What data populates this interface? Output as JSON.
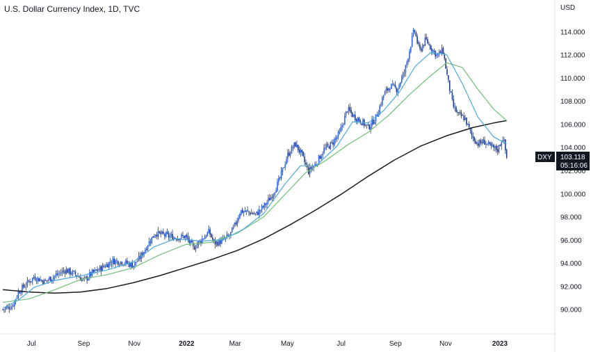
{
  "chart_data": {
    "type": "candlestick",
    "title": "U.S. Dollar Currency Index, 1D, TVC",
    "currency": "USD",
    "symbol_tag": "DXY",
    "last_price": "103.118",
    "countdown": "05:16:06",
    "ylim": [
      88.6,
      115.4
    ],
    "yticks": [
      "90.000",
      "92.000",
      "94.000",
      "96.000",
      "98.000",
      "100.000",
      "102.000",
      "104.000",
      "106.000",
      "108.000",
      "110.000",
      "112.000",
      "114.000"
    ],
    "xticks": [
      {
        "label": "Jul",
        "bold": false,
        "t": 0.055
      },
      {
        "label": "Sep",
        "bold": false,
        "t": 0.155
      },
      {
        "label": "Nov",
        "bold": false,
        "t": 0.252
      },
      {
        "label": "2022",
        "bold": true,
        "t": 0.352
      },
      {
        "label": "Mar",
        "bold": false,
        "t": 0.445
      },
      {
        "label": "May",
        "bold": false,
        "t": 0.545
      },
      {
        "label": "Jul",
        "bold": false,
        "t": 0.648
      },
      {
        "label": "Sep",
        "bold": false,
        "t": 0.752
      },
      {
        "label": "Nov",
        "bold": false,
        "t": 0.848
      },
      {
        "label": "2023",
        "bold": true,
        "t": 0.952
      }
    ],
    "price_path": [
      [
        0.0,
        90.0
      ],
      [
        0.018,
        90.3
      ],
      [
        0.03,
        91.5
      ],
      [
        0.045,
        92.2
      ],
      [
        0.06,
        92.8
      ],
      [
        0.08,
        92.4
      ],
      [
        0.1,
        92.9
      ],
      [
        0.12,
        93.4
      ],
      [
        0.14,
        93.0
      ],
      [
        0.155,
        92.5
      ],
      [
        0.17,
        93.1
      ],
      [
        0.19,
        93.6
      ],
      [
        0.21,
        94.2
      ],
      [
        0.23,
        94.1
      ],
      [
        0.25,
        93.8
      ],
      [
        0.265,
        94.6
      ],
      [
        0.28,
        95.8
      ],
      [
        0.292,
        96.6
      ],
      [
        0.31,
        96.4
      ],
      [
        0.33,
        96.2
      ],
      [
        0.35,
        96.3
      ],
      [
        0.365,
        95.3
      ],
      [
        0.38,
        96.0
      ],
      [
        0.395,
        96.7
      ],
      [
        0.405,
        95.7
      ],
      [
        0.42,
        95.9
      ],
      [
        0.435,
        96.4
      ],
      [
        0.445,
        97.3
      ],
      [
        0.455,
        98.5
      ],
      [
        0.47,
        98.4
      ],
      [
        0.485,
        98.2
      ],
      [
        0.5,
        98.9
      ],
      [
        0.515,
        99.8
      ],
      [
        0.53,
        101.2
      ],
      [
        0.545,
        103.3
      ],
      [
        0.56,
        104.3
      ],
      [
        0.572,
        103.4
      ],
      [
        0.585,
        101.9
      ],
      [
        0.6,
        102.6
      ],
      [
        0.615,
        103.8
      ],
      [
        0.63,
        104.3
      ],
      [
        0.645,
        105.2
      ],
      [
        0.66,
        107.3
      ],
      [
        0.672,
        106.7
      ],
      [
        0.685,
        106.3
      ],
      [
        0.7,
        105.7
      ],
      [
        0.715,
        106.6
      ],
      [
        0.73,
        108.6
      ],
      [
        0.742,
        109.3
      ],
      [
        0.755,
        109.0
      ],
      [
        0.77,
        110.6
      ],
      [
        0.78,
        112.6
      ],
      [
        0.788,
        114.2
      ],
      [
        0.798,
        112.3
      ],
      [
        0.81,
        113.3
      ],
      [
        0.82,
        112.6
      ],
      [
        0.832,
        111.9
      ],
      [
        0.843,
        112.4
      ],
      [
        0.852,
        109.9
      ],
      [
        0.862,
        107.6
      ],
      [
        0.872,
        106.8
      ],
      [
        0.885,
        106.5
      ],
      [
        0.898,
        105.0
      ],
      [
        0.91,
        104.3
      ],
      [
        0.922,
        104.5
      ],
      [
        0.935,
        104.0
      ],
      [
        0.948,
        103.8
      ],
      [
        0.958,
        104.9
      ],
      [
        0.965,
        103.1
      ]
    ],
    "ma_blue": [
      [
        0.0,
        90.1
      ],
      [
        0.03,
        90.8
      ],
      [
        0.06,
        91.9
      ],
      [
        0.1,
        92.5
      ],
      [
        0.15,
        92.9
      ],
      [
        0.2,
        93.4
      ],
      [
        0.25,
        94.1
      ],
      [
        0.29,
        95.4
      ],
      [
        0.33,
        96.1
      ],
      [
        0.38,
        95.9
      ],
      [
        0.42,
        96.0
      ],
      [
        0.46,
        96.9
      ],
      [
        0.5,
        98.3
      ],
      [
        0.54,
        100.8
      ],
      [
        0.57,
        102.4
      ],
      [
        0.6,
        102.4
      ],
      [
        0.64,
        104.1
      ],
      [
        0.67,
        106.2
      ],
      [
        0.7,
        106.1
      ],
      [
        0.73,
        107.2
      ],
      [
        0.76,
        108.8
      ],
      [
        0.79,
        111.0
      ],
      [
        0.82,
        112.2
      ],
      [
        0.85,
        112.0
      ],
      [
        0.88,
        109.5
      ],
      [
        0.91,
        106.6
      ],
      [
        0.94,
        104.9
      ],
      [
        0.965,
        104.3
      ]
    ],
    "ma_green": [
      [
        0.0,
        90.6
      ],
      [
        0.05,
        90.9
      ],
      [
        0.1,
        91.7
      ],
      [
        0.15,
        92.6
      ],
      [
        0.2,
        93.0
      ],
      [
        0.25,
        93.6
      ],
      [
        0.3,
        94.7
      ],
      [
        0.35,
        95.6
      ],
      [
        0.4,
        95.8
      ],
      [
        0.45,
        96.6
      ],
      [
        0.5,
        98.0
      ],
      [
        0.54,
        99.9
      ],
      [
        0.58,
        101.8
      ],
      [
        0.62,
        102.9
      ],
      [
        0.66,
        104.2
      ],
      [
        0.7,
        105.3
      ],
      [
        0.74,
        106.8
      ],
      [
        0.78,
        108.6
      ],
      [
        0.82,
        110.2
      ],
      [
        0.85,
        111.3
      ],
      [
        0.88,
        110.9
      ],
      [
        0.91,
        109.0
      ],
      [
        0.94,
        107.3
      ],
      [
        0.965,
        106.3
      ]
    ],
    "ma_black": [
      [
        0.0,
        91.7
      ],
      [
        0.05,
        91.5
      ],
      [
        0.1,
        91.4
      ],
      [
        0.15,
        91.5
      ],
      [
        0.2,
        91.8
      ],
      [
        0.25,
        92.3
      ],
      [
        0.3,
        92.9
      ],
      [
        0.35,
        93.6
      ],
      [
        0.4,
        94.3
      ],
      [
        0.45,
        95.1
      ],
      [
        0.5,
        96.1
      ],
      [
        0.55,
        97.3
      ],
      [
        0.6,
        98.6
      ],
      [
        0.65,
        100.0
      ],
      [
        0.7,
        101.5
      ],
      [
        0.75,
        102.9
      ],
      [
        0.8,
        104.1
      ],
      [
        0.85,
        105.0
      ],
      [
        0.9,
        105.7
      ],
      [
        0.94,
        106.1
      ],
      [
        0.965,
        106.3
      ]
    ],
    "colors": {
      "candle": "#2962ff",
      "wick": "#1f3b6e",
      "ma_blue": "#4aa8d8",
      "ma_green": "#6fbf73",
      "ma_black": "#1a1a1a",
      "tag_bg": "#131722",
      "tag_fg": "#ffffff",
      "grid": "#e0e3eb"
    }
  }
}
